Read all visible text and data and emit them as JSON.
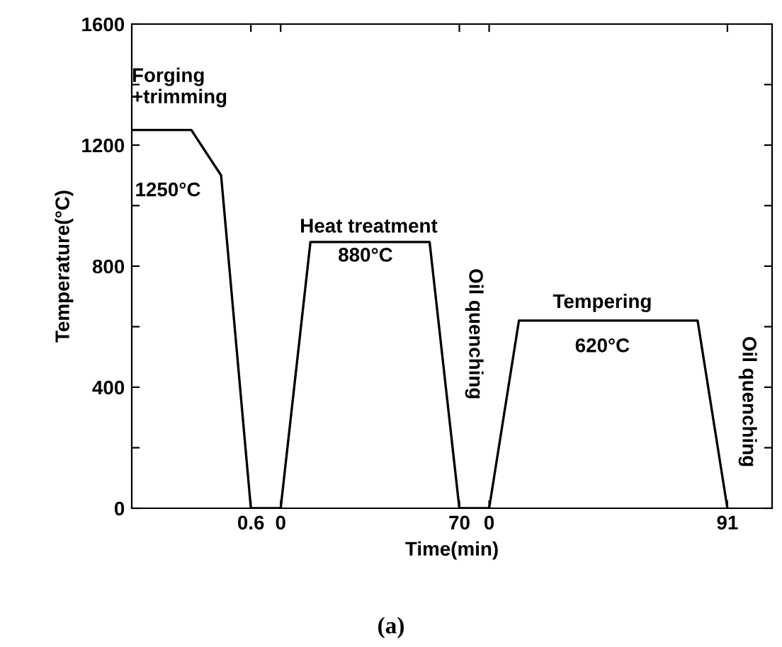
{
  "chart_data": {
    "type": "line",
    "xlabel": "Time(min)",
    "ylabel": "Temperature(°C)",
    "categories": [
      null,
      null,
      null,
      null,
      "0.6",
      "0",
      null,
      null,
      null,
      null,
      null,
      "70",
      "0",
      null,
      null,
      null,
      null,
      null,
      null,
      null,
      "91",
      null
    ],
    "series": [
      {
        "color": "#000000",
        "values": [
          1250,
          1250,
          1250,
          1100,
          0,
          0,
          880,
          880,
          880,
          880,
          880,
          0,
          0,
          620,
          620,
          620,
          620,
          620,
          620,
          620,
          0,
          null
        ]
      }
    ],
    "ylim": [
      0,
      1600
    ],
    "yticks": [
      0,
      {
        "value": 200,
        "label": null
      },
      400,
      {
        "value": 600,
        "label": null
      },
      800,
      {
        "value": 1000,
        "label": null
      },
      1200,
      {
        "value": 1400,
        "label": null
      },
      1600
    ],
    "grid": false,
    "marker": "none",
    "line_style": "solid",
    "annotations": [
      "Forging\n+trimming",
      "1250°C",
      "Heat treatment",
      "880°C",
      "Oil quenching",
      "Tempering",
      "620°C",
      "Oil quenching",
      "(a)"
    ]
  }
}
